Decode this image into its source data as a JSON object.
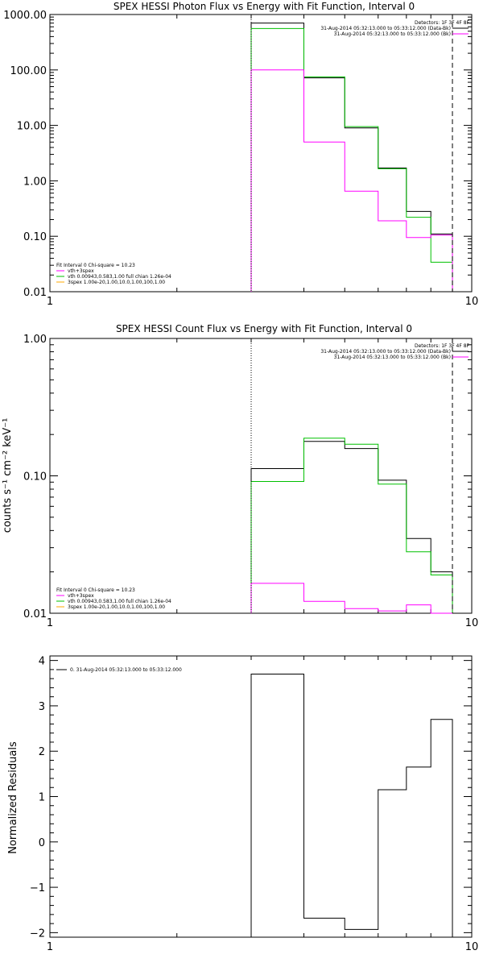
{
  "colors": {
    "data": "#000000",
    "vth_4spex": "#ff00ff",
    "vth": "#00c000",
    "spex": "#ffaa00",
    "axis": "#000000"
  },
  "panels": {
    "photon": {
      "title": "SPEX HESSI Photon Flux vs Energy with Fit Function, Interval 0",
      "detectors": "Detectors: 1F 3F 4F 8F",
      "legend_right": [
        "31-Aug-2014 05:32:13.000 to 05:33:12.000 (Data-Bk)",
        "31-Aug-2014 05:32:13.000 to 05:33:12.000 (Bk)"
      ],
      "fit_text": "Fit Interval 0   Chi-square = 10.23",
      "legend_left": [
        "vth+3spex",
        "vth 0.00943,0.583,1.00   full chian 1.26e-04",
        "3spex 1.00e-20,1.00,10.0,1.00,100,1.00"
      ],
      "yticks": [
        "0.01",
        "0.10",
        "1.00",
        "10.00",
        "100.00",
        "1000.00"
      ],
      "xticks": [
        "1",
        "10"
      ]
    },
    "count": {
      "title": "SPEX HESSI Count Flux vs Energy with Fit Function, Interval 0",
      "detectors": "Detectors: 1F 3F 4F 8F",
      "legend_right": [
        "31-Aug-2014 05:32:13.000 to 05:33:12.000 (Data-Bk)",
        "31-Aug-2014 05:32:13.000 to 05:33:12.000 (Bk)"
      ],
      "fit_text": "Fit Interval 0   Chi-square = 10.23",
      "legend_left": [
        "vth+3spex",
        "vth 0.00943,0.583,1.00   full chian 1.26e-04",
        "3spex 1.00e-20,1.00,10.0,1.00,100,1.00"
      ],
      "ylabel": "counts s⁻¹ cm⁻² keV⁻¹",
      "yticks": [
        "0.01",
        "0.10",
        "1.00"
      ],
      "xticks": [
        "1",
        "10"
      ]
    },
    "residuals": {
      "legend": "0. 31-Aug-2014 05:32:13.000 to 05:33:12.000",
      "ylabel": "Normalized Residuals",
      "yticks": [
        "−2",
        "−1",
        "0",
        "1",
        "2",
        "3",
        "4"
      ],
      "xticks": [
        "1",
        "10"
      ]
    }
  },
  "chart_data": [
    {
      "type": "line",
      "title": "SPEX HESSI Photon Flux vs Energy with Fit Function, Interval 0",
      "x_scale": "log",
      "y_scale": "log",
      "xlim": [
        1,
        10
      ],
      "ylim": [
        0.01,
        1000
      ],
      "bin_edges": [
        3,
        4,
        5,
        6,
        7,
        8,
        9
      ],
      "series": [
        {
          "name": "Data-Bk",
          "color": "#000000",
          "values": [
            700,
            72,
            9,
            1.7,
            0.28,
            0.11
          ]
        },
        {
          "name": "vth+3spex",
          "color": "#00c000",
          "values": [
            560,
            75,
            9.5,
            1.65,
            0.22,
            0.034
          ]
        },
        {
          "name": "Bk",
          "color": "#ff00ff",
          "values": [
            100,
            5.0,
            0.65,
            0.19,
            0.095,
            0.105
          ]
        }
      ],
      "vlines": [
        {
          "x": 3,
          "style": "dotted"
        },
        {
          "x": 9,
          "style": "dashed"
        }
      ]
    },
    {
      "type": "line",
      "title": "SPEX HESSI Count Flux vs Energy with Fit Function, Interval 0",
      "ylabel": "counts s⁻¹ cm⁻² keV⁻¹",
      "x_scale": "log",
      "y_scale": "log",
      "xlim": [
        1,
        10
      ],
      "ylim": [
        0.01,
        1
      ],
      "bin_edges": [
        3,
        4,
        5,
        6,
        7,
        8,
        9
      ],
      "series": [
        {
          "name": "Data-Bk",
          "color": "#000000",
          "values": [
            0.113,
            0.178,
            0.158,
            0.093,
            0.035,
            0.02
          ]
        },
        {
          "name": "vth+3spex",
          "color": "#00c000",
          "values": [
            0.091,
            0.188,
            0.17,
            0.087,
            0.028,
            0.019
          ]
        },
        {
          "name": "Bk",
          "color": "#ff00ff",
          "values": [
            0.0165,
            0.0122,
            0.0108,
            0.0104,
            0.0115,
            0.01
          ]
        }
      ],
      "vlines": [
        {
          "x": 3,
          "style": "dotted"
        },
        {
          "x": 9,
          "style": "dashed"
        }
      ]
    },
    {
      "type": "line",
      "ylabel": "Normalized Residuals",
      "x_scale": "log",
      "y_scale": "linear",
      "xlim": [
        1,
        10
      ],
      "ylim": [
        -2.1,
        4.1
      ],
      "bin_edges": [
        3,
        4,
        5,
        6,
        7,
        8,
        9
      ],
      "series": [
        {
          "name": "0. 31-Aug-2014 05:32:13.000 to 05:33:12.000",
          "color": "#000000",
          "values": [
            3.7,
            -1.68,
            -1.93,
            1.15,
            1.65,
            2.7
          ]
        }
      ]
    }
  ]
}
